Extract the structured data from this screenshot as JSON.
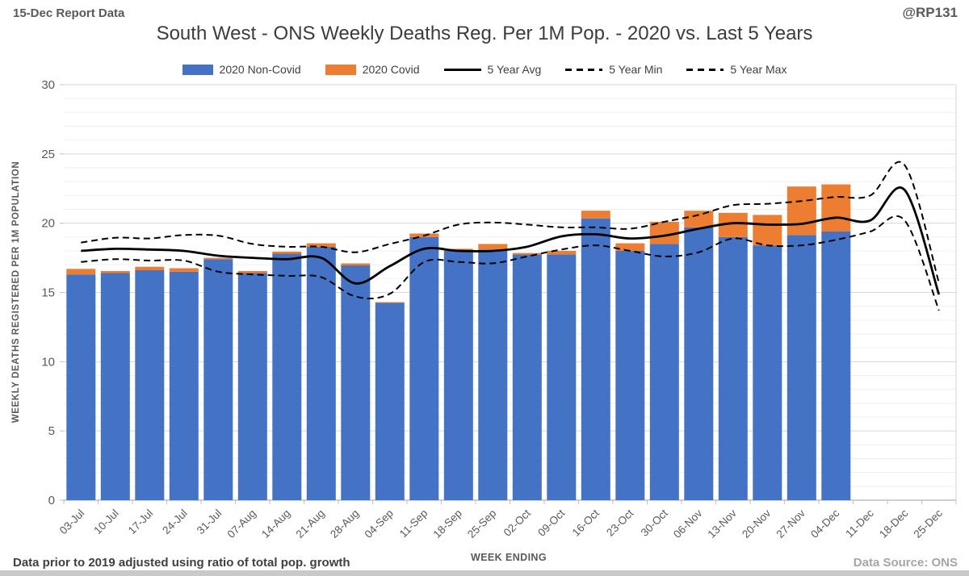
{
  "header": {
    "report_label": "15-Dec Report Data",
    "handle": "@RP131"
  },
  "title": "South West - ONS Weekly Deaths Reg. Per 1M Pop. - 2020 vs. Last 5 Years",
  "legend": {
    "noncovid": "2020 Non-Covid",
    "covid": "2020 Covid",
    "avg": "5 Year Avg",
    "min": "5 Year Min",
    "max": "5 Year Max"
  },
  "footer": {
    "note": "Data prior to 2019 adjusted using ratio of total pop. growth",
    "source": "Data Source: ONS"
  },
  "colors": {
    "noncovid_bar": "#4472C4",
    "covid_bar": "#ED7D31",
    "line": "#000000",
    "grid_minor": "#EFEFEF",
    "grid_major": "#D6D6D6",
    "axis": "#BFBFBF",
    "tick_text": "#595959"
  },
  "chart_data": {
    "type": "bar",
    "subtype": "stacked bars with overlaid smoothed lines",
    "title": "South West - ONS Weekly Deaths Reg. Per 1M Pop. - 2020 vs. Last 5 Years",
    "xlabel": "WEEK ENDING",
    "ylabel": "WEEKLY DEATHS REGISTERED PER 1M POPULATION",
    "ylim": [
      0,
      30
    ],
    "ytick_step": 5,
    "grid": "minor every 1, major every 5",
    "legend_position": "top",
    "categories": [
      "03-Jul",
      "10-Jul",
      "17-Jul",
      "24-Jul",
      "31-Jul",
      "07-Aug",
      "14-Aug",
      "21-Aug",
      "28-Aug",
      "04-Sep",
      "11-Sep",
      "18-Sep",
      "25-Sep",
      "02-Oct",
      "09-Oct",
      "16-Oct",
      "23-Oct",
      "30-Oct",
      "06-Nov",
      "13-Nov",
      "20-Nov",
      "27-Nov",
      "04-Dec",
      "11-Dec",
      "18-Dec",
      "25-Dec"
    ],
    "series": [
      {
        "name": "2020 Non-Covid",
        "type": "bar",
        "color": "#4472C4",
        "values": [
          16.3,
          16.4,
          16.6,
          16.5,
          17.4,
          16.4,
          17.8,
          18.3,
          16.95,
          14.25,
          19.0,
          18.0,
          18.1,
          17.75,
          17.75,
          20.35,
          18.0,
          18.5,
          19.7,
          19.0,
          18.4,
          19.15,
          19.4,
          null,
          null,
          null
        ]
      },
      {
        "name": "2020 Covid",
        "type": "bar",
        "color": "#ED7D31",
        "values": [
          0.4,
          0.15,
          0.25,
          0.25,
          0.1,
          0.15,
          0.15,
          0.25,
          0.15,
          0.05,
          0.25,
          0.15,
          0.4,
          0.1,
          0.25,
          0.55,
          0.55,
          1.6,
          1.2,
          1.75,
          2.2,
          3.5,
          3.4,
          null,
          null,
          null
        ]
      },
      {
        "name": "5 Year Avg",
        "type": "line",
        "style": "solid",
        "values": [
          18.0,
          18.15,
          18.1,
          18.0,
          17.65,
          17.5,
          17.4,
          17.5,
          15.65,
          16.9,
          18.15,
          18.0,
          18.0,
          18.3,
          19.05,
          19.2,
          18.9,
          19.1,
          19.6,
          20.0,
          19.9,
          19.95,
          20.4,
          20.2,
          22.4,
          14.85
        ]
      },
      {
        "name": "5 Year Min",
        "type": "line",
        "style": "dashed",
        "values": [
          17.2,
          17.4,
          17.3,
          17.3,
          16.5,
          16.3,
          16.2,
          16.1,
          14.7,
          14.9,
          17.2,
          17.2,
          17.1,
          17.6,
          18.1,
          18.4,
          18.0,
          17.6,
          17.9,
          18.9,
          18.4,
          18.4,
          18.8,
          19.4,
          20.2,
          13.7
        ]
      },
      {
        "name": "5 Year Max",
        "type": "line",
        "style": "dashed",
        "values": [
          18.6,
          18.95,
          18.9,
          19.15,
          19.1,
          18.5,
          18.3,
          18.3,
          17.9,
          18.5,
          19.1,
          19.9,
          20.05,
          19.9,
          19.7,
          19.7,
          19.6,
          20.1,
          20.6,
          21.3,
          21.4,
          21.6,
          21.9,
          22.0,
          24.2,
          15.7
        ]
      }
    ]
  }
}
